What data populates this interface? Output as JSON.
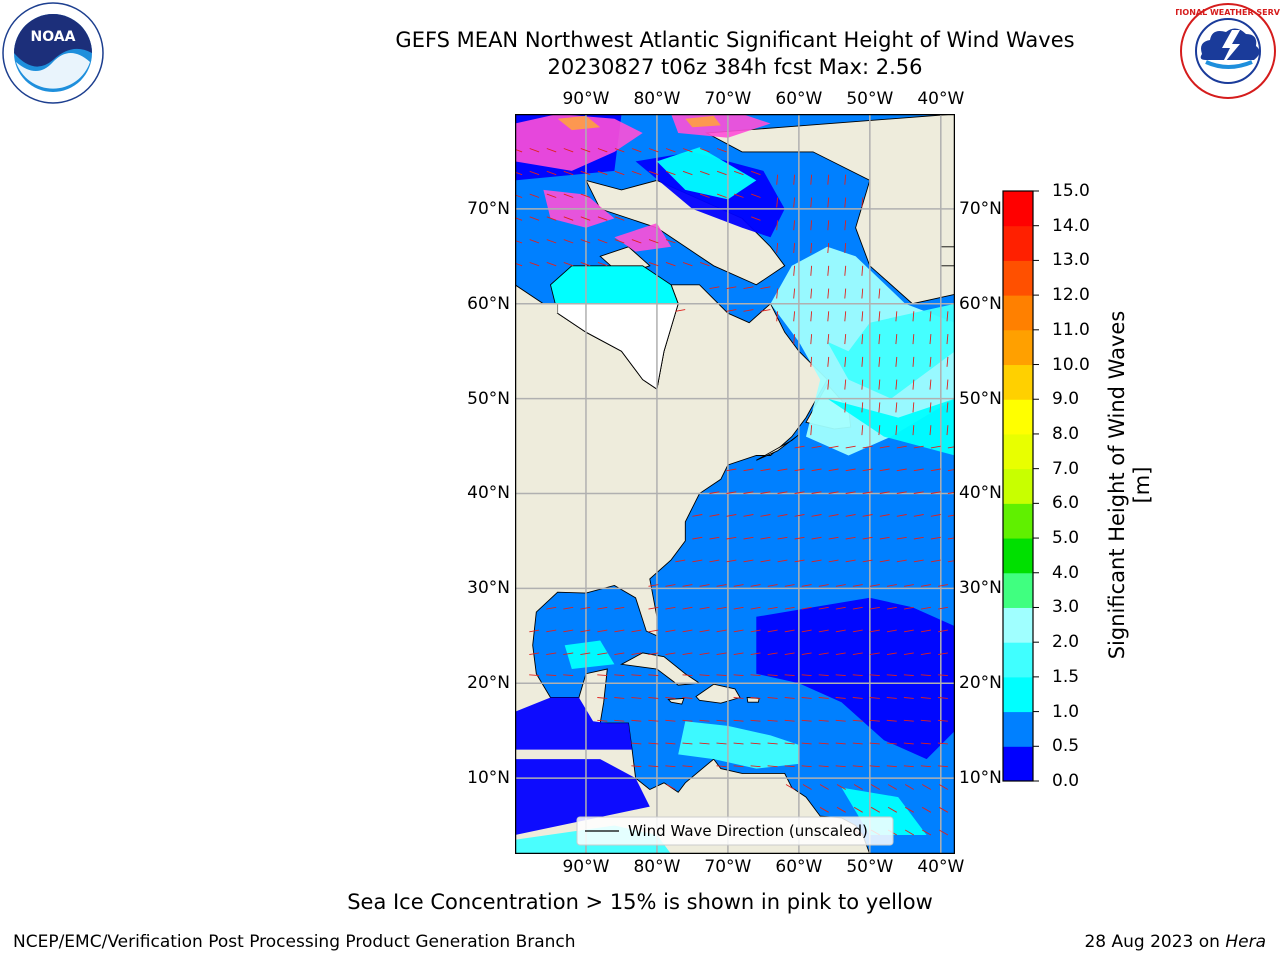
{
  "header": {
    "title": "GEFS MEAN Northwest Atlantic Significant Height of Wind Waves",
    "subtitle": "20230827 t06z 384h fcst   Max: 2.56"
  },
  "logos": {
    "left": "noaa-logo",
    "left_text": "NOAA",
    "right": "nws-logo",
    "right_text": "NATIONAL WEATHER SERVICE"
  },
  "map": {
    "projection": "cylindrical",
    "lon_range": [
      -100,
      -38
    ],
    "lat_range": [
      2,
      80
    ],
    "lon_ticks": [
      {
        "value": -90,
        "label": "90°W"
      },
      {
        "value": -80,
        "label": "80°W"
      },
      {
        "value": -70,
        "label": "70°W"
      },
      {
        "value": -60,
        "label": "60°W"
      },
      {
        "value": -50,
        "label": "50°W"
      },
      {
        "value": -40,
        "label": "40°W"
      }
    ],
    "lat_ticks": [
      {
        "value": 10,
        "label": "10°N"
      },
      {
        "value": 20,
        "label": "20°N"
      },
      {
        "value": 30,
        "label": "30°N"
      },
      {
        "value": 40,
        "label": "40°N"
      },
      {
        "value": 50,
        "label": "50°N"
      },
      {
        "value": 60,
        "label": "60°N"
      },
      {
        "value": 70,
        "label": "70°N"
      }
    ],
    "land_color": "#eeecdc",
    "vector_color": "#e0201c",
    "legend_label": "Wind Wave Direction (unscaled)",
    "grid": true
  },
  "colorbar": {
    "label": "Significant Height of Wind Waves [m]",
    "levels": [
      "0.0",
      "0.5",
      "1.0",
      "1.5",
      "2.0",
      "3.0",
      "4.0",
      "5.0",
      "6.0",
      "7.0",
      "8.0",
      "9.0",
      "10.0",
      "11.0",
      "12.0",
      "13.0",
      "14.0",
      "15.0"
    ],
    "colors": [
      "#0000ff",
      "#0080ff",
      "#00ffff",
      "#40ffff",
      "#a0ffff",
      "#40ff80",
      "#00e000",
      "#60f000",
      "#c8ff00",
      "#e8ff00",
      "#ffff00",
      "#ffd000",
      "#ffa000",
      "#ff8000",
      "#ff5000",
      "#ff2000",
      "#ff0000"
    ]
  },
  "footnote": "Sea Ice Concentration > 15% is shown in pink to yellow",
  "credit_left": "NCEP/EMC/Verification Post Processing Product Generation Branch",
  "credit_date": "28 Aug 2023 on",
  "credit_host": "Hera"
}
